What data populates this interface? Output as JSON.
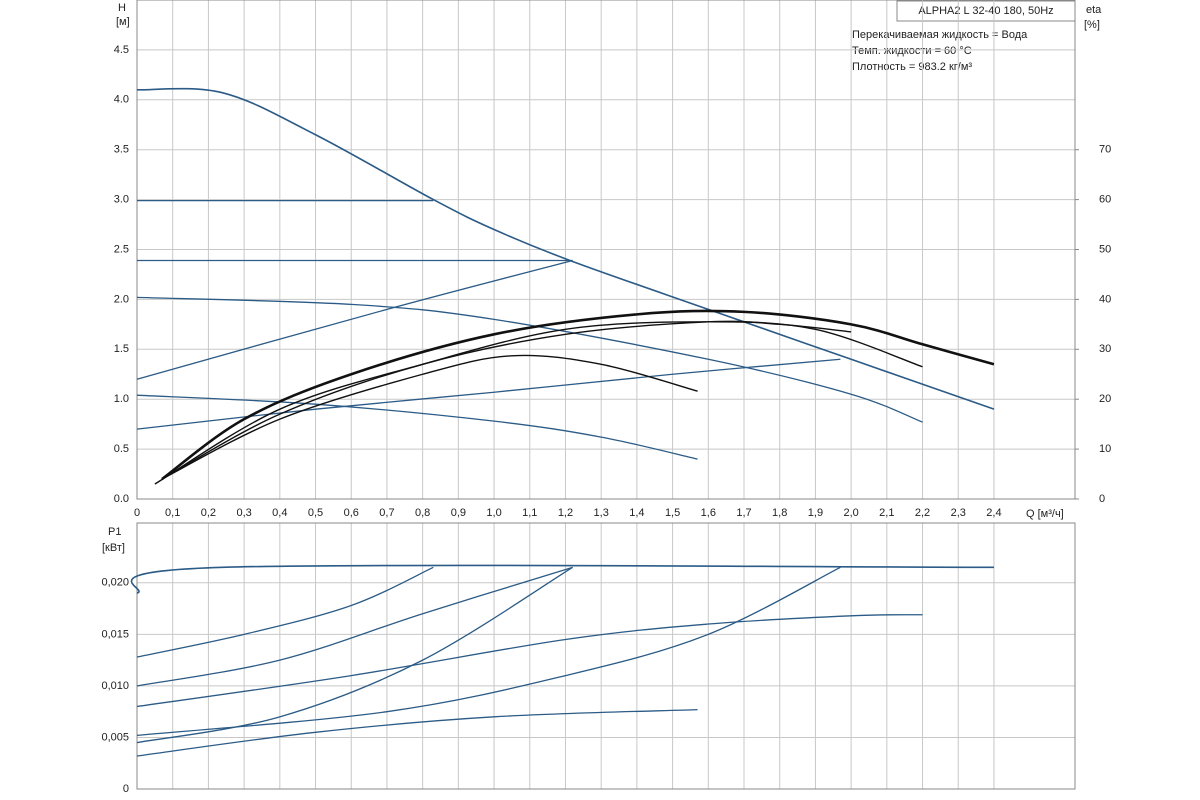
{
  "chart_data": [
    {
      "type": "line",
      "title": "ALPHA2 L 32-40 180, 50Hz",
      "annotations": [
        "Перекачиваемая жидкость = Вода",
        "Темп. жидкости = 60 °C",
        "Плотность = 983.2 кг/м³"
      ],
      "ylabel": "H",
      "yunit": "[м]",
      "y2label": "eta",
      "y2unit": "[%]",
      "xlabel": "Q [м³/ч]",
      "xlim": [
        0,
        2.627
      ],
      "ylim": [
        0,
        5
      ],
      "y2lim": [
        0,
        100
      ],
      "grid": true,
      "xticks": [
        {
          "value": 0,
          "label": "0"
        },
        {
          "value": 0.1,
          "label": "0,1"
        },
        {
          "value": 0.2,
          "label": "0,2"
        },
        {
          "value": 0.3,
          "label": "0,3"
        },
        {
          "value": 0.4,
          "label": "0,4"
        },
        {
          "value": 0.5,
          "label": "0,5"
        },
        {
          "value": 0.6,
          "label": "0,6"
        },
        {
          "value": 0.7,
          "label": "0,7"
        },
        {
          "value": 0.8,
          "label": "0,8"
        },
        {
          "value": 0.9,
          "label": "0,9"
        },
        {
          "value": 1.0,
          "label": "1,0"
        },
        {
          "value": 1.1,
          "label": "1,1"
        },
        {
          "value": 1.2,
          "label": "1,2"
        },
        {
          "value": 1.3,
          "label": "1,3"
        },
        {
          "value": 1.4,
          "label": "1,4"
        },
        {
          "value": 1.5,
          "label": "1,5"
        },
        {
          "value": 1.6,
          "label": "1,6"
        },
        {
          "value": 1.7,
          "label": "1,7"
        },
        {
          "value": 1.8,
          "label": "1,8"
        },
        {
          "value": 1.9,
          "label": "1,9"
        },
        {
          "value": 2.0,
          "label": "2,0"
        },
        {
          "value": 2.1,
          "label": "2,1"
        },
        {
          "value": 2.2,
          "label": "2,2"
        },
        {
          "value": 2.3,
          "label": "2,3"
        },
        {
          "value": 2.4,
          "label": "2,4"
        }
      ],
      "yticks": [
        {
          "value": 0,
          "label": "0.0"
        },
        0.5,
        {
          "value": 1,
          "label": "1.0"
        },
        1.5,
        {
          "value": 2,
          "label": "2.0"
        },
        2.5,
        {
          "value": 3,
          "label": "3.0"
        },
        3.5,
        {
          "value": 4,
          "label": "4.0"
        },
        4.5
      ],
      "y2ticks": [
        0,
        10,
        20,
        30,
        40,
        50,
        60,
        70
      ],
      "series": [
        {
          "color": "#2b5b86",
          "x": [
            0,
            0.24,
            0.5,
            0.83,
            1.0,
            1.22,
            1.6,
            2.0,
            2.4
          ],
          "values": [
            4.1,
            4.07,
            3.65,
            3.0,
            2.7,
            2.38,
            1.9,
            1.4,
            0.9
          ]
        },
        {
          "color": "#2b5b86",
          "x": [
            0,
            0.83
          ],
          "values": [
            2.99,
            2.99
          ]
        },
        {
          "color": "#2b5b86",
          "x": [
            0,
            1.22
          ],
          "values": [
            2.39,
            2.39
          ]
        },
        {
          "color": "#2b5b86",
          "x": [
            0,
            0.7,
            1.22
          ],
          "values": [
            1.2,
            1.9,
            2.39
          ]
        },
        {
          "color": "#2b5b86",
          "x": [
            0,
            0.6,
            1.0,
            1.6,
            2.0,
            2.2
          ],
          "values": [
            2.02,
            1.95,
            1.8,
            1.4,
            1.05,
            0.77
          ]
        },
        {
          "color": "#2b5b86",
          "x": [
            0,
            0.5,
            1.0,
            1.3,
            1.57
          ],
          "values": [
            1.04,
            0.95,
            0.78,
            0.62,
            0.4
          ]
        },
        {
          "color": "#2b5b86",
          "x": [
            0,
            0.5,
            1.0,
            1.5,
            1.97
          ],
          "values": [
            0.7,
            0.9,
            1.07,
            1.25,
            1.4
          ]
        },
        {
          "color": "#111111",
          "axis": "y2",
          "x": [
            0.07,
            0.3,
            0.6,
            1.0,
            1.4,
            1.7,
            2.0,
            2.2,
            2.4
          ],
          "values": [
            4,
            16,
            25,
            33,
            37,
            37.5,
            35,
            31,
            27
          ]
        },
        {
          "color": "#111111",
          "axis": "y2",
          "x": [
            0.05,
            0.4,
            0.8,
            1.2,
            1.6,
            1.9,
            2.2
          ],
          "values": [
            3,
            18,
            27,
            34,
            35.5,
            34,
            26.5
          ]
        },
        {
          "color": "#111111",
          "axis": "y2",
          "x": [
            0.07,
            0.4,
            0.8,
            1.2,
            1.6,
            1.8,
            2.0
          ],
          "values": [
            4,
            17,
            27,
            33,
            35.5,
            35,
            33.5
          ]
        },
        {
          "color": "#111111",
          "axis": "y2",
          "x": [
            0.07,
            0.4,
            0.8,
            1.05,
            1.3,
            1.57
          ],
          "values": [
            4,
            16,
            25,
            28.7,
            27,
            21.6
          ]
        }
      ]
    },
    {
      "type": "line",
      "ylabel": "P1",
      "yunit": "[кВт]",
      "xlim": [
        0,
        2.627
      ],
      "ylim": [
        0,
        0.0258
      ],
      "grid": true,
      "yticks": [
        0,
        {
          "value": 0.005,
          "label": "0,005"
        },
        {
          "value": 0.01,
          "label": "0,010"
        },
        {
          "value": 0.015,
          "label": "0,015"
        },
        {
          "value": 0.02,
          "label": "0,020"
        }
      ],
      "series": [
        {
          "color": "#2b5b86",
          "x": [
            0,
            0.24,
            2.4
          ],
          "values": [
            0.019,
            0.0215,
            0.0215
          ]
        },
        {
          "color": "#2b5b86",
          "x": [
            0,
            0.3,
            0.6,
            0.83
          ],
          "values": [
            0.0128,
            0.015,
            0.0178,
            0.0215
          ]
        },
        {
          "color": "#2b5b86",
          "x": [
            0,
            0.4,
            0.8,
            1.22
          ],
          "values": [
            0.01,
            0.0125,
            0.017,
            0.0215
          ]
        },
        {
          "color": "#2b5b86",
          "x": [
            0,
            0.4,
            0.8,
            1.22
          ],
          "values": [
            0.0045,
            0.007,
            0.0125,
            0.0215
          ]
        },
        {
          "color": "#2b5b86",
          "x": [
            0,
            0.6,
            1.2,
            1.6,
            2.0,
            2.2
          ],
          "values": [
            0.008,
            0.011,
            0.0145,
            0.016,
            0.0168,
            0.0169
          ]
        },
        {
          "color": "#2b5b86",
          "x": [
            0,
            0.7,
            1.2,
            1.6,
            1.97
          ],
          "values": [
            0.0052,
            0.0075,
            0.011,
            0.015,
            0.0215
          ]
        },
        {
          "color": "#2b5b86",
          "x": [
            0,
            0.5,
            1.0,
            1.57
          ],
          "values": [
            0.0032,
            0.0055,
            0.007,
            0.0077
          ]
        }
      ]
    }
  ]
}
